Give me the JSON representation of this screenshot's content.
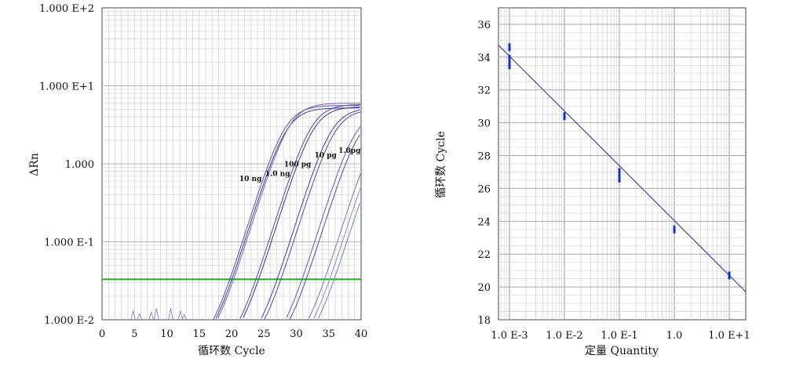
{
  "chart_data": [
    {
      "type": "line",
      "xlabel": "循环数 Cycle",
      "ylabel": "ΔRn",
      "xlim": [
        0,
        40
      ],
      "ylim_log10": [
        -2,
        2
      ],
      "yscale": "log",
      "x_ticks": [
        0,
        5,
        10,
        15,
        20,
        25,
        30,
        35,
        40
      ],
      "y_ticks": [
        {
          "value": 0.01,
          "label": "1.000 E-2"
        },
        {
          "value": 0.1,
          "label": "1.000 E-1"
        },
        {
          "value": 1,
          "label": "1.000"
        },
        {
          "value": 10,
          "label": "1.000 E+1"
        },
        {
          "value": 100,
          "label": "1.000 E+2"
        }
      ],
      "grid": true,
      "threshold": {
        "value": 0.033,
        "color": "#22aa22"
      },
      "annotations": [
        {
          "text": "10 ng",
          "x": 21.2,
          "y": 0.6
        },
        {
          "text": "1.0 ng",
          "x": 25.2,
          "y": 0.7
        },
        {
          "text": "100 pg",
          "x": 28.1,
          "y": 0.92
        },
        {
          "text": "10 pg",
          "x": 32.8,
          "y": 1.2
        },
        {
          "text": "1.0pg",
          "x": 36.5,
          "y": 1.38
        }
      ],
      "series": [
        {
          "ct": 20.2,
          "plateau": 5.6,
          "color": "#5a4fb0"
        },
        {
          "ct": 20.4,
          "plateau": 5.2,
          "color": "#3d3f9e"
        },
        {
          "ct": 20.9,
          "plateau": 6.0,
          "color": "#7a5cc0"
        },
        {
          "ct": 24.3,
          "plateau": 5.8,
          "color": "#4a4aa8"
        },
        {
          "ct": 24.6,
          "plateau": 5.4,
          "color": "#2f3a90"
        },
        {
          "ct": 27.4,
          "plateau": 5.2,
          "color": "#3c3ea4"
        },
        {
          "ct": 27.9,
          "plateau": 5.0,
          "color": "#5548b0"
        },
        {
          "ct": 31.1,
          "plateau": 4.8,
          "color": "#6a5ab8"
        },
        {
          "ct": 31.6,
          "plateau": 4.4,
          "color": "#4b4ca0"
        },
        {
          "ct": 34.3,
          "plateau": 4.0,
          "color": "#6f7bb0"
        },
        {
          "ct": 34.9,
          "plateau": 3.6,
          "color": "#8a8ec0"
        },
        {
          "ct": 35.4,
          "plateau": 3.2,
          "color": "#7484b4"
        }
      ],
      "baseline_noise": [
        {
          "x": 4.8,
          "y": 0.013
        },
        {
          "x": 5.8,
          "y": 0.012
        },
        {
          "x": 7.6,
          "y": 0.0125
        },
        {
          "x": 8.4,
          "y": 0.014
        },
        {
          "x": 10.6,
          "y": 0.014
        },
        {
          "x": 12.1,
          "y": 0.013
        },
        {
          "x": 12.7,
          "y": 0.0115
        }
      ]
    },
    {
      "type": "scatter",
      "xlabel": "定量 Quantity",
      "ylabel": "循环数 Cycle",
      "xscale": "log",
      "xlim_log10": [
        -3.2,
        1.3
      ],
      "ylim": [
        18,
        37
      ],
      "x_ticks": [
        {
          "value": 0.001,
          "label": "1.0 E-3"
        },
        {
          "value": 0.01,
          "label": "1.0 E-2"
        },
        {
          "value": 0.1,
          "label": "1.0 E-1"
        },
        {
          "value": 1,
          "label": "1.0"
        },
        {
          "value": 10,
          "label": "1.0 E+1"
        }
      ],
      "y_ticks": [
        18,
        20,
        22,
        24,
        26,
        28,
        30,
        32,
        34,
        36
      ],
      "grid": true,
      "points": [
        {
          "x": 0.001,
          "y": 34.6
        },
        {
          "x": 0.001,
          "y": 33.9
        },
        {
          "x": 0.001,
          "y": 33.5
        },
        {
          "x": 0.01,
          "y": 30.4
        },
        {
          "x": 0.1,
          "y": 27.0
        },
        {
          "x": 0.1,
          "y": 26.6
        },
        {
          "x": 1,
          "y": 23.5
        },
        {
          "x": 10,
          "y": 20.7
        }
      ],
      "fit_line": {
        "x": [
          0.0006,
          20
        ],
        "y": [
          34.8,
          19.7
        ]
      },
      "point_color": "#1030d0",
      "line_color": "#2a3190"
    }
  ]
}
